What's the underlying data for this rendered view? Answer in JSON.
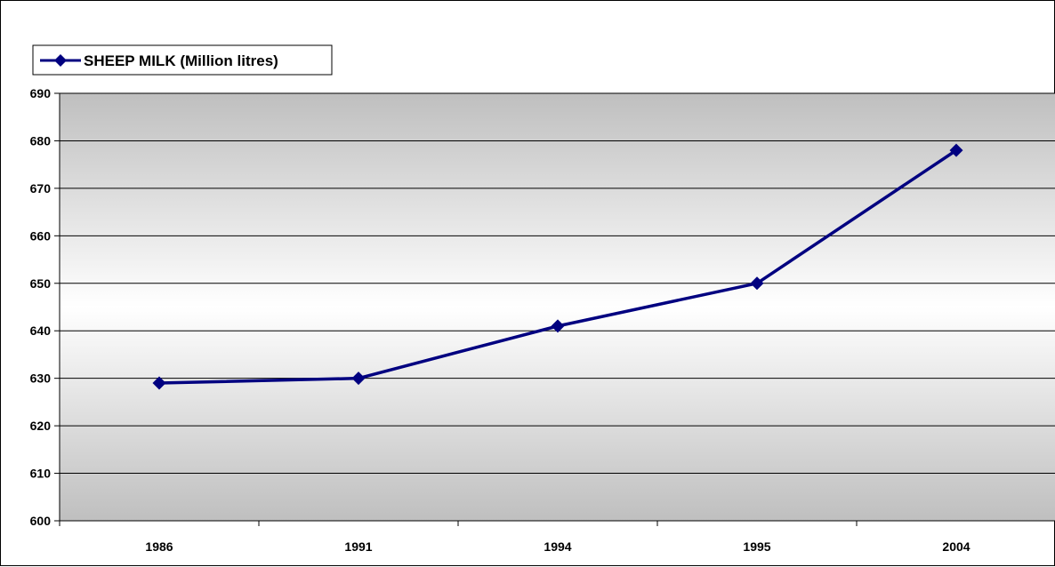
{
  "chart_data": {
    "type": "line",
    "title": "",
    "xlabel": "",
    "ylabel": "",
    "categories": [
      "1986",
      "1991",
      "1994",
      "1995",
      "2004"
    ],
    "series": [
      {
        "name": "SHEEP MILK (Million litres)",
        "values": [
          629,
          630,
          641,
          650,
          678
        ],
        "color": "#000080",
        "marker": "diamond"
      }
    ],
    "ylim": [
      600,
      690
    ],
    "yticks": [
      600,
      610,
      620,
      630,
      640,
      650,
      660,
      670,
      680,
      690
    ],
    "grid": true,
    "legend_position": "top-left",
    "plot_background": "gradient gray-white-gray"
  }
}
